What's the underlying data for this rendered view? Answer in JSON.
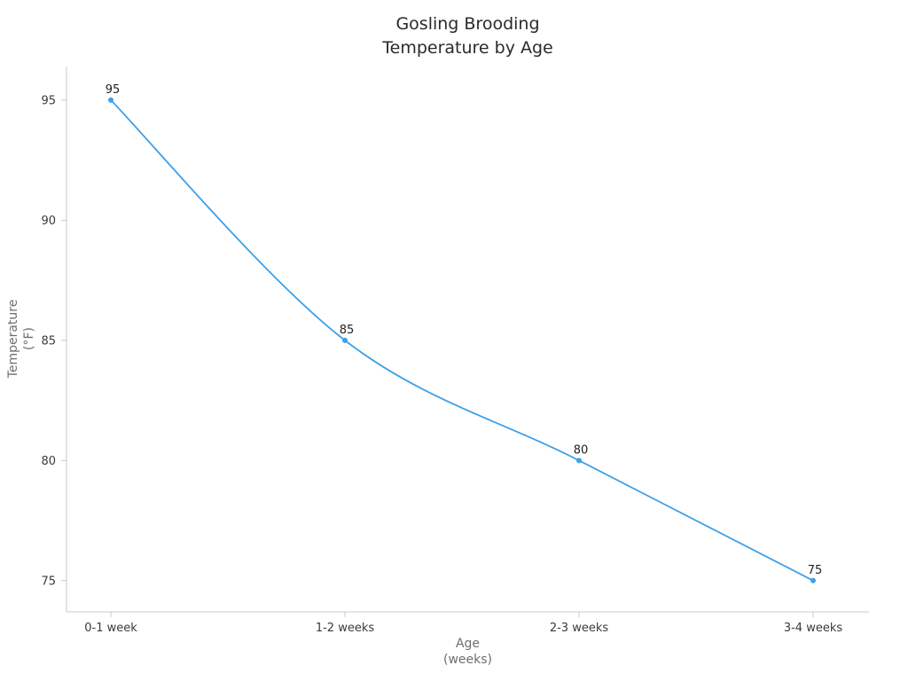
{
  "chart_data": {
    "type": "line",
    "title": "Gosling Brooding Temperature by Age",
    "title_lines": [
      "Gosling Brooding",
      "Temperature by Age"
    ],
    "categories": [
      "0-1 week",
      "1-2 weeks",
      "2-3 weeks",
      "3-4 weeks"
    ],
    "values": [
      95,
      85,
      80,
      75
    ],
    "data_labels": [
      "95",
      "85",
      "80",
      "75"
    ],
    "xlabel": "Age (weeks)",
    "xlabel_lines": [
      "Age",
      "(weeks)"
    ],
    "ylabel": "Temperature (°F)",
    "ylabel_lines": [
      "Temperature",
      "(°F)"
    ],
    "yticks": [
      75,
      80,
      85,
      90,
      95
    ],
    "ylim": [
      73.7,
      96.4
    ],
    "grid": false,
    "legend": "none",
    "smooth": true,
    "line_color": "#3da0e8",
    "point_color": "#3da0e8",
    "spine_color": "#c9c9c9",
    "tick_label_color": "#3a3a3a",
    "data_label_color": "#1f1f1f"
  }
}
